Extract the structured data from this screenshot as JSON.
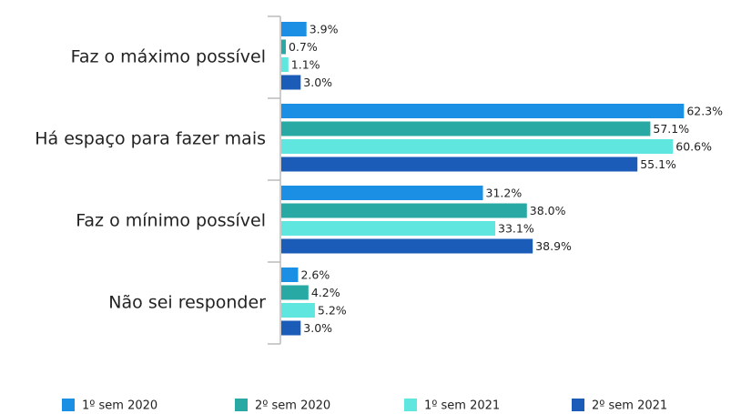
{
  "chart_data": {
    "type": "bar",
    "orientation": "horizontal",
    "categories": [
      "Faz o máximo possível",
      "Há espaço para fazer mais",
      "Faz o mínimo possível",
      "Não sei responder"
    ],
    "series": [
      {
        "name": "1º sem 2020",
        "color": "#1a8fe3",
        "values": [
          3.9,
          62.3,
          31.2,
          2.6
        ],
        "value_labels": [
          "3.9%",
          "62.3%",
          "31.2%",
          "2.6%"
        ]
      },
      {
        "name": "2º sem 2020",
        "color": "#29a9a4",
        "values": [
          0.7,
          57.1,
          38.0,
          4.2
        ],
        "value_labels": [
          "0.7%",
          "57.1%",
          "38.0%",
          "4.2%"
        ]
      },
      {
        "name": "1º sem 2021",
        "color": "#5fe6df",
        "values": [
          1.1,
          60.6,
          33.1,
          5.2
        ],
        "value_labels": [
          "1.1%",
          "60.6%",
          "33.1%",
          "5.2%"
        ]
      },
      {
        "name": "2º sem 2021",
        "color": "#1b5cb9",
        "values": [
          3.0,
          55.1,
          38.9,
          3.0
        ],
        "value_labels": [
          "3.0%",
          "55.1%",
          "38.9%",
          "3.0%"
        ]
      }
    ],
    "legend": "bottom"
  }
}
